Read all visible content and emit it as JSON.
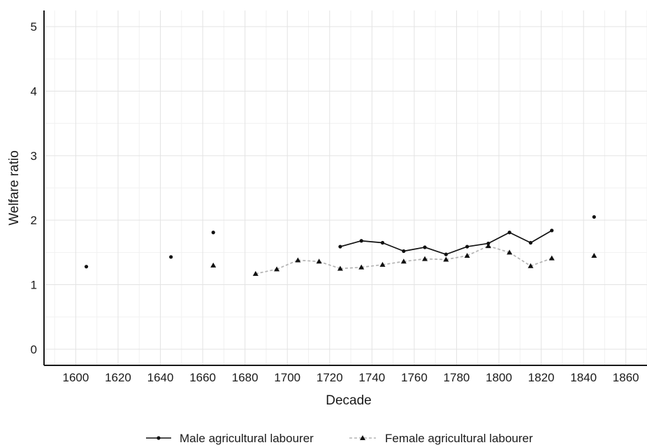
{
  "chart_data": {
    "type": "line",
    "title": "",
    "xlabel": "Decade",
    "ylabel": "Welfare ratio",
    "xlim": [
      1585,
      1870
    ],
    "ylim": [
      -0.25,
      5.25
    ],
    "xticks": [
      1600,
      1620,
      1640,
      1660,
      1680,
      1700,
      1720,
      1740,
      1760,
      1780,
      1800,
      1820,
      1840,
      1860
    ],
    "yticks": [
      0,
      1,
      2,
      3,
      4,
      5
    ],
    "grid": true,
    "legend_position": "bottom",
    "series": [
      {
        "name": "Male agricultural labourer",
        "style": "solid",
        "marker": "circle",
        "color": "#111111",
        "points": [
          {
            "x": 1605,
            "y": 1.28
          },
          {
            "x": 1645,
            "y": 1.43
          },
          {
            "x": 1665,
            "y": 1.81
          },
          {
            "x": 1725,
            "y": 1.59
          },
          {
            "x": 1735,
            "y": 1.68
          },
          {
            "x": 1745,
            "y": 1.65
          },
          {
            "x": 1755,
            "y": 1.52
          },
          {
            "x": 1765,
            "y": 1.58
          },
          {
            "x": 1775,
            "y": 1.47
          },
          {
            "x": 1785,
            "y": 1.59
          },
          {
            "x": 1795,
            "y": 1.64
          },
          {
            "x": 1805,
            "y": 1.81
          },
          {
            "x": 1815,
            "y": 1.65
          },
          {
            "x": 1825,
            "y": 1.84
          },
          {
            "x": 1845,
            "y": 2.05
          }
        ]
      },
      {
        "name": "Female agricultural labourer",
        "style": "dashed",
        "marker": "triangle",
        "color": "#b3b3b3",
        "points": [
          {
            "x": 1665,
            "y": 1.3
          },
          {
            "x": 1685,
            "y": 1.17
          },
          {
            "x": 1695,
            "y": 1.24
          },
          {
            "x": 1705,
            "y": 1.38
          },
          {
            "x": 1715,
            "y": 1.36
          },
          {
            "x": 1725,
            "y": 1.25
          },
          {
            "x": 1735,
            "y": 1.27
          },
          {
            "x": 1745,
            "y": 1.31
          },
          {
            "x": 1755,
            "y": 1.36
          },
          {
            "x": 1765,
            "y": 1.4
          },
          {
            "x": 1775,
            "y": 1.39
          },
          {
            "x": 1785,
            "y": 1.45
          },
          {
            "x": 1795,
            "y": 1.6
          },
          {
            "x": 1805,
            "y": 1.5
          },
          {
            "x": 1815,
            "y": 1.29
          },
          {
            "x": 1825,
            "y": 1.41
          },
          {
            "x": 1845,
            "y": 1.45
          }
        ]
      }
    ]
  }
}
